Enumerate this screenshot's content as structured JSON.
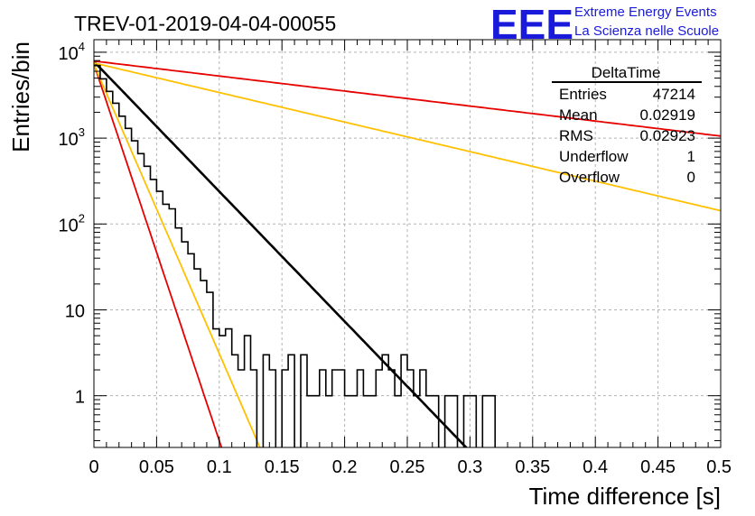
{
  "chart_data": {
    "type": "histogram",
    "title": "TREV-01-2019-04-04-00055",
    "xlabel": "Time difference [s]",
    "ylabel": "Entries/bin",
    "xlim": [
      0,
      0.5
    ],
    "ylim": [
      0.25,
      14000
    ],
    "yscale": "log",
    "grid": true,
    "x_ticks": [
      "0",
      "0.05",
      "0.1",
      "0.15",
      "0.2",
      "0.25",
      "0.3",
      "0.35",
      "0.4",
      "0.45",
      "0.5"
    ],
    "y_ticks": [
      {
        "base": "10",
        "exp": "4",
        "value": 10000
      },
      {
        "base": "10",
        "exp": "3",
        "value": 1000
      },
      {
        "base": "10",
        "exp": "2",
        "value": 100
      },
      {
        "base": "10",
        "exp": "",
        "value": 10
      },
      {
        "base": "1",
        "exp": "",
        "value": 1
      }
    ],
    "stats_box": {
      "name": "DeltaTime",
      "rows": [
        {
          "label": "Entries",
          "value": "47214"
        },
        {
          "label": "Mean",
          "value": "0.02919"
        },
        {
          "label": "RMS",
          "value": "0.02923"
        },
        {
          "label": "Underflow",
          "value": "1"
        },
        {
          "label": "Overflow",
          "value": "0"
        }
      ]
    },
    "histogram": {
      "color": "#000000",
      "bin_width": 0.005,
      "x_start": 0,
      "counts": [
        7000,
        4900,
        3500,
        2550,
        1800,
        1300,
        930,
        660,
        470,
        330,
        240,
        170,
        150,
        90,
        62,
        45,
        30,
        22,
        16,
        6,
        5,
        6,
        3,
        2,
        5,
        2,
        0,
        3,
        2,
        0,
        2,
        3,
        0,
        3,
        1,
        1,
        2,
        1,
        2,
        2,
        1,
        1,
        2,
        1,
        1,
        2,
        3,
        2,
        1,
        3,
        2,
        1,
        2,
        1,
        1,
        0,
        1,
        1,
        0,
        1,
        1,
        0,
        1,
        1,
        0
      ]
    },
    "curves": [
      {
        "color": "#000000",
        "width": 2.6,
        "amplitude": 7800,
        "tau": 0.0287,
        "x_end": 0.305
      },
      {
        "color": "#e60000",
        "width": 1.8,
        "amplitude": 7300,
        "tau": 0.0099,
        "x_end": 0.5
      },
      {
        "color": "#ffc000",
        "width": 1.8,
        "amplitude": 7200,
        "tau": 0.0129,
        "x_end": 0.5
      },
      {
        "color": "#ffc000",
        "width": 1.8,
        "amplitude": 7500,
        "tau": 0.1262,
        "x_end": 0.5
      },
      {
        "color": "#e60000",
        "width": 1.8,
        "amplitude": 7900,
        "tau": 0.2485,
        "x_end": 0.5
      }
    ]
  },
  "logo": {
    "big": "EEE",
    "line1": "Extreme Energy Events",
    "line2": "La Scienza nelle Scuole",
    "color": "#1a1adb"
  }
}
